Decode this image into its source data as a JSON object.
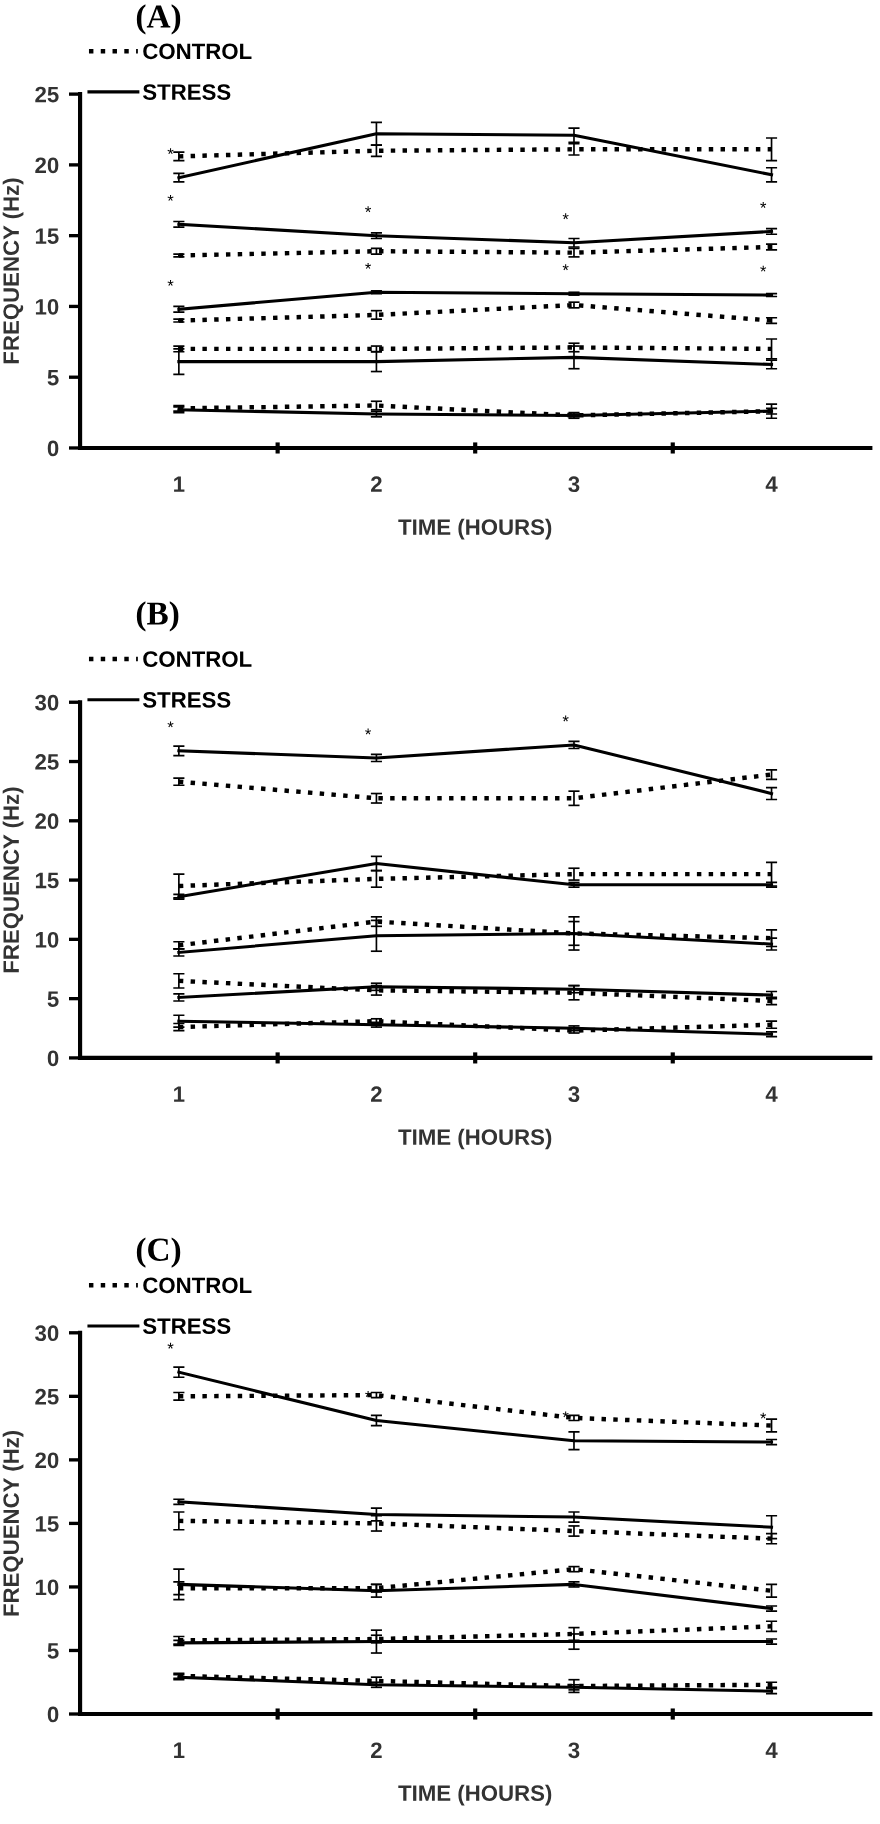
{
  "chart_data": [
    {
      "type": "line",
      "title": "(A)",
      "xlabel": "TIME (HOURS)",
      "ylabel": "FREQUENCY (Hz)",
      "categories": [
        "1",
        "2",
        "3",
        "4"
      ],
      "ylim": [
        0,
        25
      ],
      "yticks": [
        0,
        5,
        10,
        15,
        20,
        25
      ],
      "grid": false,
      "legend": "top left",
      "marker": "none",
      "series": [
        {
          "name": "CONTROL",
          "color": "#000000",
          "line_style": "dotted",
          "values": [
            20.6,
            21.0,
            21.1,
            21.1
          ],
          "errors": [
            0.3,
            0.4,
            0.4,
            0.8
          ]
        },
        {
          "name": "STRESS",
          "color": "#000000",
          "line_style": "solid",
          "values": [
            19.1,
            22.2,
            22.1,
            19.3
          ],
          "errors": [
            0.3,
            0.8,
            0.5,
            0.5
          ]
        },
        {
          "color": "#000000",
          "line_style": "solid",
          "values": [
            15.8,
            15.0,
            14.5,
            15.3
          ],
          "errors": [
            0.2,
            0.2,
            0.3,
            0.2
          ]
        },
        {
          "color": "#000000",
          "line_style": "dotted",
          "values": [
            13.6,
            13.9,
            13.8,
            14.2
          ],
          "errors": [
            0.1,
            0.2,
            0.3,
            0.2
          ]
        },
        {
          "color": "#000000",
          "line_style": "solid",
          "values": [
            9.8,
            11.0,
            10.9,
            10.8
          ],
          "errors": [
            0.2,
            0.1,
            0.1,
            0.1
          ]
        },
        {
          "color": "#000000",
          "line_style": "dotted",
          "values": [
            9.0,
            9.4,
            10.1,
            9.0
          ],
          "errors": [
            0.1,
            0.3,
            0.2,
            0.2
          ]
        },
        {
          "color": "#000000",
          "line_style": "dotted",
          "values": [
            7.0,
            7.0,
            7.1,
            7.0
          ],
          "errors": [
            0.2,
            0.2,
            0.3,
            0.7
          ]
        },
        {
          "color": "#000000",
          "line_style": "solid",
          "values": [
            6.1,
            6.1,
            6.4,
            5.9
          ],
          "errors": [
            0.9,
            0.7,
            0.8,
            0.3
          ]
        },
        {
          "color": "#000000",
          "line_style": "dotted",
          "values": [
            2.8,
            3.0,
            2.3,
            2.6
          ],
          "errors": [
            0.2,
            0.3,
            0.2,
            0.5
          ]
        },
        {
          "color": "#000000",
          "line_style": "solid",
          "values": [
            2.7,
            2.4,
            2.3,
            2.6
          ],
          "errors": [
            0.2,
            0.2,
            0.1,
            0.2
          ]
        }
      ],
      "annotations": [
        {
          "text": "*",
          "x": "1",
          "y": 19.1
        },
        {
          "text": "*",
          "x": "1",
          "y": 15.8
        },
        {
          "text": "*",
          "x": "2",
          "y": 15.0
        },
        {
          "text": "*",
          "x": "3",
          "y": 14.5
        },
        {
          "text": "*",
          "x": "4",
          "y": 15.3
        },
        {
          "text": "*",
          "x": "1",
          "y": 9.8
        },
        {
          "text": "*",
          "x": "2",
          "y": 11.0
        },
        {
          "text": "*",
          "x": "3",
          "y": 10.9
        },
        {
          "text": "*",
          "x": "4",
          "y": 10.8
        }
      ]
    },
    {
      "type": "line",
      "title": "(B)",
      "xlabel": "TIME (HOURS)",
      "ylabel": "FREQUENCY (Hz)",
      "categories": [
        "1",
        "2",
        "3",
        "4"
      ],
      "ylim": [
        0,
        30
      ],
      "yticks": [
        0,
        5,
        10,
        15,
        20,
        25,
        30
      ],
      "grid": false,
      "legend": "top left",
      "marker": "none",
      "series": [
        {
          "name": "CONTROL",
          "color": "#000000",
          "line_style": "dotted",
          "values": [
            23.3,
            21.9,
            21.9,
            23.9
          ],
          "errors": [
            0.3,
            0.4,
            0.6,
            0.4
          ]
        },
        {
          "name": "STRESS",
          "color": "#000000",
          "line_style": "solid",
          "values": [
            25.9,
            25.3,
            26.4,
            22.3
          ],
          "errors": [
            0.4,
            0.3,
            0.3,
            0.5
          ]
        },
        {
          "color": "#000000",
          "line_style": "solid",
          "values": [
            13.6,
            16.4,
            14.6,
            14.6
          ],
          "errors": [
            0.2,
            0.6,
            0.2,
            0.2
          ]
        },
        {
          "color": "#000000",
          "line_style": "dotted",
          "values": [
            14.5,
            15.1,
            15.5,
            15.5
          ],
          "errors": [
            1.0,
            0.7,
            0.5,
            1.0
          ]
        },
        {
          "color": "#000000",
          "line_style": "dotted",
          "values": [
            9.5,
            11.5,
            10.5,
            10.1
          ],
          "errors": [
            0.3,
            0.4,
            1.4,
            0.7
          ]
        },
        {
          "color": "#000000",
          "line_style": "solid",
          "values": [
            8.9,
            10.3,
            10.5,
            9.6
          ],
          "errors": [
            0.3,
            1.3,
            1.0,
            0.5
          ]
        },
        {
          "color": "#000000",
          "line_style": "dotted",
          "values": [
            6.5,
            5.7,
            5.5,
            4.8
          ],
          "errors": [
            0.6,
            0.4,
            0.6,
            0.3
          ]
        },
        {
          "color": "#000000",
          "line_style": "solid",
          "values": [
            5.1,
            6.0,
            5.8,
            5.3
          ],
          "errors": [
            0.3,
            0.3,
            0.3,
            0.3
          ]
        },
        {
          "color": "#000000",
          "line_style": "dotted",
          "values": [
            2.6,
            3.1,
            2.3,
            2.8
          ],
          "errors": [
            0.3,
            0.2,
            0.2,
            0.3
          ]
        },
        {
          "color": "#000000",
          "line_style": "solid",
          "values": [
            3.1,
            2.8,
            2.5,
            2.0
          ],
          "errors": [
            0.5,
            0.2,
            0.2,
            0.2
          ]
        }
      ],
      "annotations": [
        {
          "text": "*",
          "x": "1",
          "y": 25.9
        },
        {
          "text": "*",
          "x": "2",
          "y": 25.3
        },
        {
          "text": "*",
          "x": "3",
          "y": 26.4
        }
      ]
    },
    {
      "type": "line",
      "title": "(C)",
      "xlabel": "TIME (HOURS)",
      "ylabel": "FREQUENCY (Hz)",
      "categories": [
        "1",
        "2",
        "3",
        "4"
      ],
      "ylim": [
        0,
        30
      ],
      "yticks": [
        0,
        5,
        10,
        15,
        20,
        25,
        30
      ],
      "grid": false,
      "legend": "top left",
      "marker": "none",
      "series": [
        {
          "name": "CONTROL",
          "color": "#000000",
          "line_style": "dotted",
          "values": [
            25.0,
            25.1,
            23.3,
            22.7
          ],
          "errors": [
            0.3,
            0.2,
            0.2,
            0.5
          ]
        },
        {
          "name": "STRESS",
          "color": "#000000",
          "line_style": "solid",
          "values": [
            26.9,
            23.1,
            21.5,
            21.4
          ],
          "errors": [
            0.4,
            0.4,
            0.7,
            0.2
          ]
        },
        {
          "color": "#000000",
          "line_style": "solid",
          "values": [
            16.7,
            15.7,
            15.5,
            14.7
          ],
          "errors": [
            0.2,
            0.5,
            0.4,
            0.9
          ]
        },
        {
          "color": "#000000",
          "line_style": "dotted",
          "values": [
            15.2,
            15.0,
            14.4,
            13.8
          ],
          "errors": [
            0.7,
            0.6,
            0.4,
            0.4
          ]
        },
        {
          "color": "#000000",
          "line_style": "solid",
          "values": [
            10.2,
            9.7,
            10.2,
            8.3
          ],
          "errors": [
            1.2,
            0.5,
            0.2,
            0.2
          ]
        },
        {
          "color": "#000000",
          "line_style": "dotted",
          "values": [
            9.9,
            9.9,
            11.4,
            9.7
          ],
          "errors": [
            0.5,
            0.3,
            0.2,
            0.5
          ]
        },
        {
          "color": "#000000",
          "line_style": "dotted",
          "values": [
            5.8,
            5.9,
            6.3,
            6.9
          ],
          "errors": [
            0.3,
            0.3,
            0.5,
            0.4
          ]
        },
        {
          "color": "#000000",
          "line_style": "solid",
          "values": [
            5.6,
            5.7,
            5.7,
            5.7
          ],
          "errors": [
            0.2,
            0.9,
            0.6,
            0.2
          ]
        },
        {
          "color": "#000000",
          "line_style": "dotted",
          "values": [
            3.0,
            2.6,
            2.2,
            2.3
          ],
          "errors": [
            0.2,
            0.3,
            0.5,
            0.2
          ]
        },
        {
          "color": "#000000",
          "line_style": "solid",
          "values": [
            2.9,
            2.3,
            2.1,
            1.8
          ],
          "errors": [
            0.2,
            0.2,
            0.2,
            0.2
          ]
        }
      ],
      "annotations": [
        {
          "text": "*",
          "x": "1",
          "y": 26.9
        },
        {
          "text": "*",
          "x": "2",
          "y": 23.1
        },
        {
          "text": "*",
          "x": "3",
          "y": 21.5
        },
        {
          "text": "*",
          "x": "4",
          "y": 21.4
        }
      ]
    }
  ]
}
